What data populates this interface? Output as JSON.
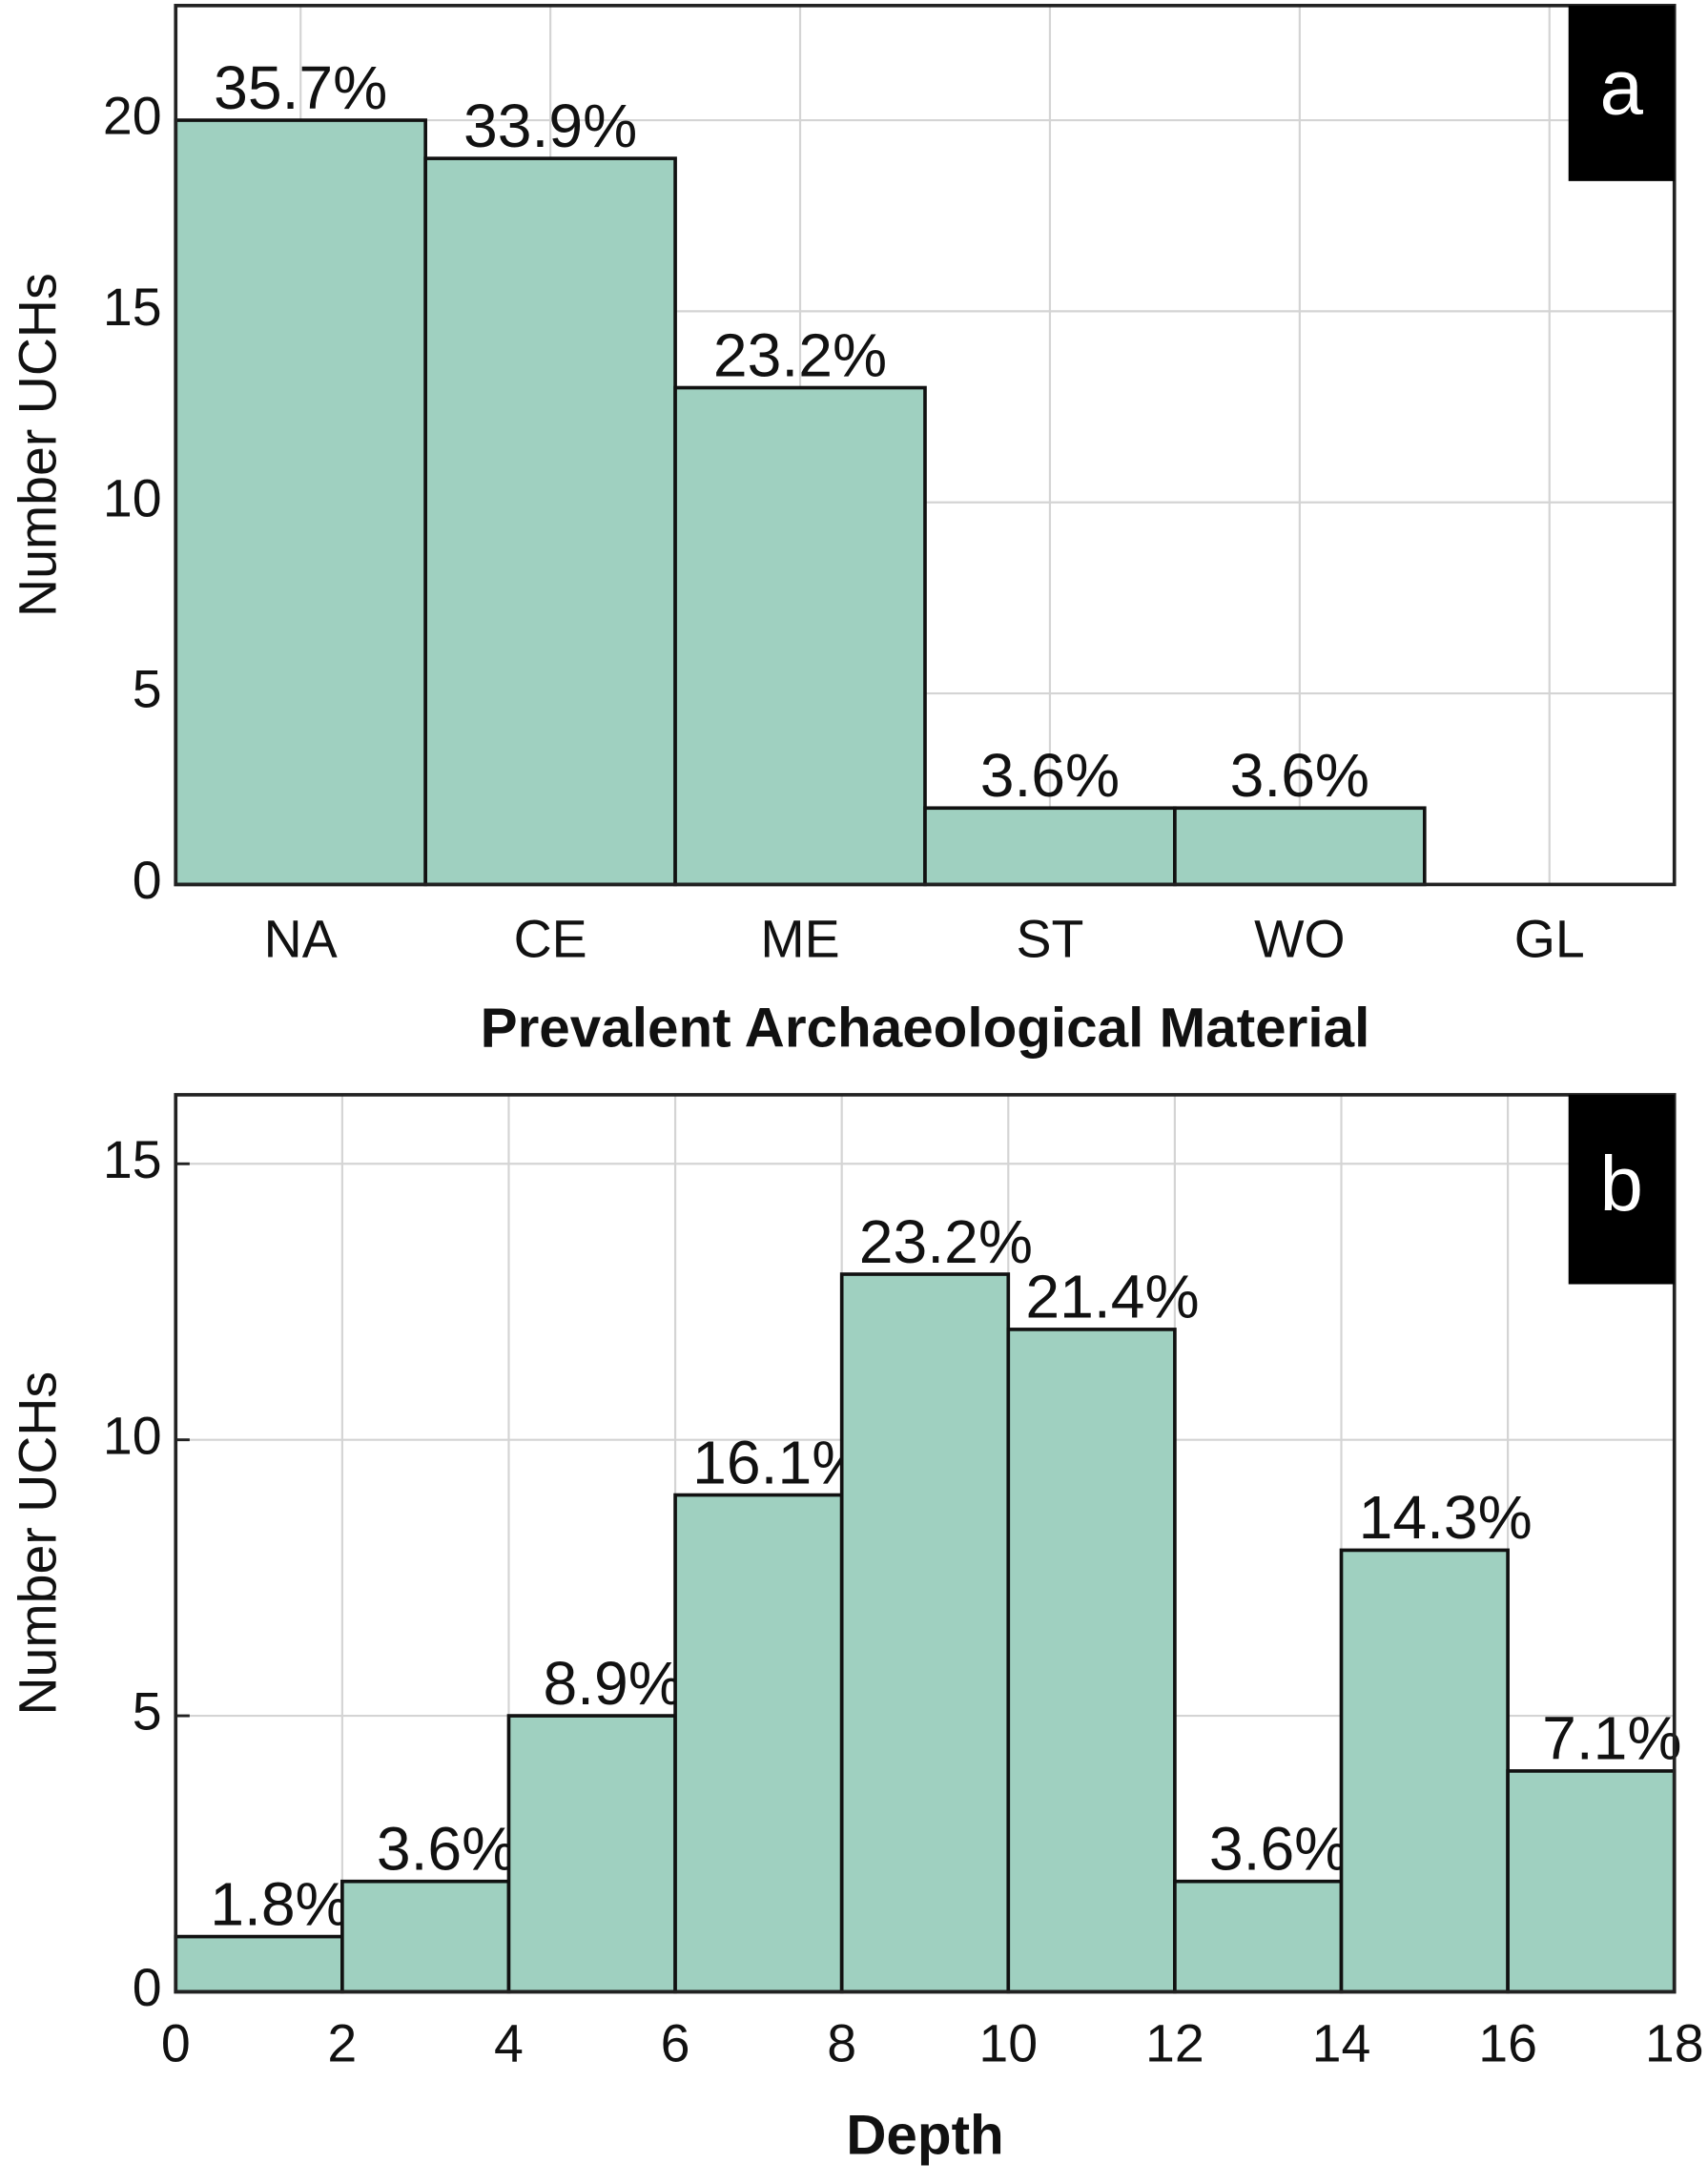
{
  "chart_data": [
    {
      "type": "bar",
      "panel": "a",
      "x_label": "Prevalent Archaeological Material",
      "y_label": "Number UCHs",
      "categories": [
        "NA",
        "CE",
        "ME",
        "ST",
        "WO",
        "GL"
      ],
      "values": [
        20,
        19,
        13,
        2,
        2,
        0
      ],
      "bar_labels": [
        "35.7%",
        "33.9%",
        "23.2%",
        "3.6%",
        "3.6%",
        null
      ],
      "color": "#9fd0c0",
      "ylim": [
        0,
        23
      ],
      "yticks": [
        0,
        5,
        10,
        15,
        20
      ],
      "grid": true
    },
    {
      "type": "histogram",
      "panel": "b",
      "x_label": "Depth",
      "y_label": "Number UCHs",
      "bins": [
        0,
        2,
        4,
        6,
        8,
        10,
        12,
        14,
        16,
        18
      ],
      "values": [
        1,
        2,
        5,
        9,
        13,
        12,
        2,
        8,
        4
      ],
      "bar_labels": [
        "1.8%",
        "3.6%",
        "8.9%",
        "16.1%",
        "23.2%",
        "21.4%",
        "3.6%",
        "14.3%",
        "7.1%"
      ],
      "color": "#9fd0c0",
      "xlim": [
        0,
        18
      ],
      "xticks": [
        0,
        2,
        4,
        6,
        8,
        10,
        12,
        14,
        16,
        18
      ],
      "ylim": [
        0,
        16.25
      ],
      "yticks": [
        0,
        5,
        10,
        15
      ],
      "grid": true
    }
  ]
}
